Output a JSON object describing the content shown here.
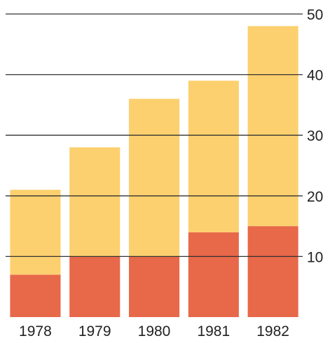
{
  "chart_data": {
    "type": "bar",
    "stacked": true,
    "categories": [
      "1978",
      "1979",
      "1980",
      "1981",
      "1982"
    ],
    "series": [
      {
        "values": [
          7,
          10,
          10,
          14,
          15
        ],
        "color": "#e8684a"
      },
      {
        "values": [
          14,
          18,
          26,
          25,
          33
        ],
        "color": "#fcd06e"
      }
    ],
    "title": "",
    "xlabel": "",
    "ylabel": "",
    "ylim": [
      0,
      50
    ],
    "yticks": [
      10,
      20,
      30,
      40,
      50
    ],
    "ytick_labels": [
      "10",
      "20",
      "30",
      "40",
      "50"
    ],
    "y_axis_position": "right",
    "grid": true
  }
}
